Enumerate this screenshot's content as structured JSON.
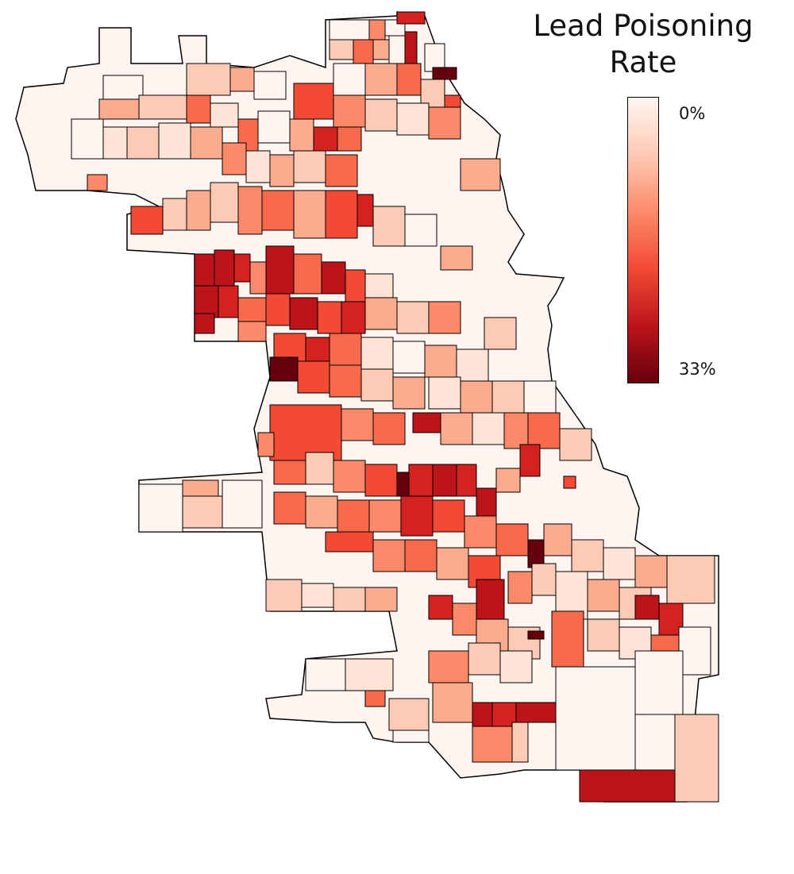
{
  "title_line1": "Lead Poisoning",
  "title_line2": "Rate",
  "colorbar": {
    "min_label": "0%",
    "max_label": "33%",
    "colors": [
      "#fff5f0",
      "#fdcab5",
      "#fc8a6a",
      "#f24a35",
      "#bc141a",
      "#67000d"
    ]
  },
  "map": {
    "stroke_color": "#000000",
    "fill_color_by_level": [
      "#fff5f0",
      "#fee3d6",
      "#fdcab5",
      "#fcab8f",
      "#fc8a6a",
      "#f96a4d",
      "#f24a35",
      "#d52221",
      "#bc141a",
      "#67000d"
    ]
  }
}
